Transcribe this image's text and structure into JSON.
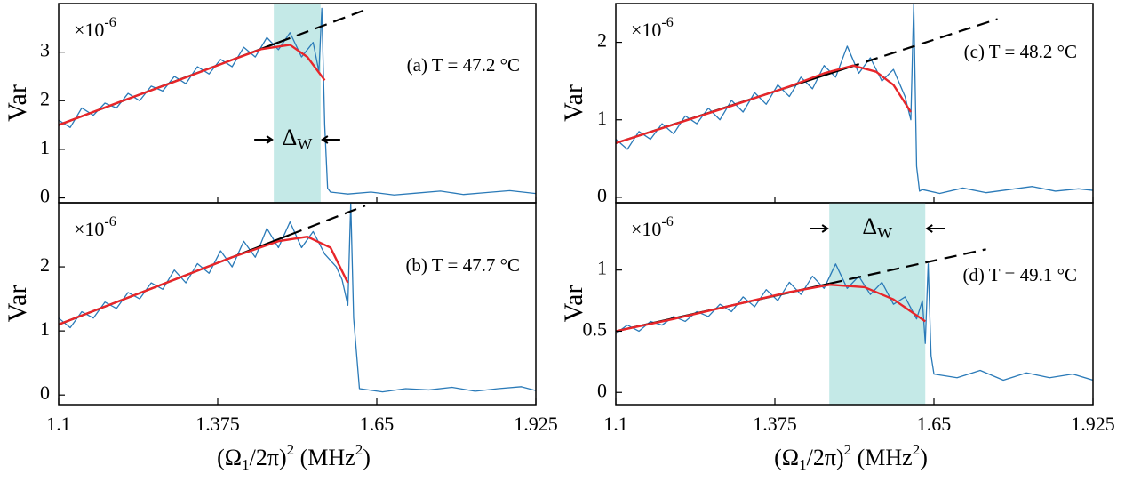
{
  "chart_data": [
    {
      "type": "line",
      "ylabel": "Var",
      "scale_label": "×10",
      "scale_exponent": "-6",
      "panel_label": "(a)  T = 47.2 °C",
      "xlim": [
        1.1,
        1.925
      ],
      "xticks": [
        1.1,
        1.375,
        1.65,
        1.925
      ],
      "show_xtick_labels": false,
      "ylim": [
        -0.1,
        4.0
      ],
      "yticks": [
        0,
        1,
        2,
        3
      ],
      "shade": [
        1.472,
        1.553
      ],
      "shade_color": "#c4e9e7",
      "delta_label": {
        "text": "Δ",
        "sub": "W"
      },
      "series": [
        {
          "color": "#2a7ab8",
          "width": 1.3,
          "dash": false,
          "x": [
            1.1,
            1.12,
            1.14,
            1.16,
            1.18,
            1.2,
            1.22,
            1.24,
            1.26,
            1.28,
            1.3,
            1.32,
            1.34,
            1.36,
            1.38,
            1.4,
            1.42,
            1.44,
            1.46,
            1.48,
            1.5,
            1.52,
            1.54,
            1.55,
            1.555,
            1.56,
            1.565,
            1.57,
            1.6,
            1.64,
            1.68,
            1.72,
            1.76,
            1.8,
            1.84,
            1.88,
            1.925
          ],
          "values": [
            1.6,
            1.45,
            1.85,
            1.7,
            1.95,
            1.85,
            2.15,
            2.0,
            2.3,
            2.2,
            2.5,
            2.35,
            2.7,
            2.55,
            2.85,
            2.7,
            3.1,
            2.9,
            3.3,
            3.05,
            3.4,
            2.9,
            3.2,
            2.6,
            3.9,
            1.5,
            0.2,
            0.12,
            0.08,
            0.12,
            0.06,
            0.1,
            0.14,
            0.07,
            0.11,
            0.15,
            0.09
          ]
        },
        {
          "color": "#000000",
          "width": 2.2,
          "dash": false,
          "x": [
            1.1,
            1.48
          ],
          "values": [
            1.5,
            3.2
          ]
        },
        {
          "color": "#000000",
          "width": 2.2,
          "dash": true,
          "x": [
            1.48,
            1.63
          ],
          "values": [
            3.2,
            3.87
          ]
        },
        {
          "color": "#e8262a",
          "width": 2.4,
          "dash": false,
          "x": [
            1.1,
            1.2,
            1.3,
            1.4,
            1.45,
            1.5,
            1.53,
            1.56
          ],
          "values": [
            1.5,
            1.95,
            2.39,
            2.84,
            3.06,
            3.15,
            2.9,
            2.42
          ]
        }
      ]
    },
    {
      "type": "line",
      "ylabel": "Var",
      "scale_label": "×10",
      "scale_exponent": "-6",
      "panel_label": "(b)  T = 47.7 °C",
      "xlim": [
        1.1,
        1.925
      ],
      "xticks": [
        1.1,
        1.375,
        1.65,
        1.925
      ],
      "show_xtick_labels": true,
      "xlabel": [
        {
          "text": "(Ω",
          "script": "none"
        },
        {
          "text": "1",
          "script": "sub"
        },
        {
          "text": "/2π)",
          "script": "none"
        },
        {
          "text": "2",
          "script": "sup"
        },
        {
          "text": " (MHz",
          "script": "none"
        },
        {
          "text": "2",
          "script": "sup"
        },
        {
          "text": ")",
          "script": "none"
        }
      ],
      "ylim": [
        -0.15,
        3.0
      ],
      "yticks": [
        0,
        1,
        2
      ],
      "series": [
        {
          "color": "#2a7ab8",
          "width": 1.3,
          "dash": false,
          "x": [
            1.1,
            1.12,
            1.14,
            1.16,
            1.18,
            1.2,
            1.22,
            1.24,
            1.26,
            1.28,
            1.3,
            1.32,
            1.34,
            1.36,
            1.38,
            1.4,
            1.42,
            1.44,
            1.46,
            1.48,
            1.5,
            1.52,
            1.54,
            1.56,
            1.58,
            1.59,
            1.6,
            1.605,
            1.61,
            1.62,
            1.66,
            1.7,
            1.74,
            1.78,
            1.82,
            1.86,
            1.9,
            1.925
          ],
          "values": [
            1.2,
            1.05,
            1.3,
            1.2,
            1.45,
            1.35,
            1.6,
            1.5,
            1.75,
            1.65,
            1.95,
            1.75,
            2.05,
            1.9,
            2.25,
            2.0,
            2.4,
            2.15,
            2.6,
            2.3,
            2.7,
            2.3,
            2.55,
            2.2,
            2.0,
            1.8,
            1.4,
            3.0,
            1.2,
            0.1,
            0.05,
            0.1,
            0.08,
            0.12,
            0.06,
            0.1,
            0.13,
            0.07
          ]
        },
        {
          "color": "#000000",
          "width": 2.2,
          "dash": false,
          "x": [
            1.1,
            1.5
          ],
          "values": [
            1.1,
            2.5
          ]
        },
        {
          "color": "#000000",
          "width": 2.2,
          "dash": true,
          "x": [
            1.5,
            1.63
          ],
          "values": [
            2.5,
            2.955
          ]
        },
        {
          "color": "#e8262a",
          "width": 2.4,
          "dash": false,
          "x": [
            1.1,
            1.2,
            1.3,
            1.4,
            1.48,
            1.53,
            1.57,
            1.6
          ],
          "values": [
            1.1,
            1.45,
            1.8,
            2.15,
            2.4,
            2.47,
            2.3,
            1.75
          ]
        }
      ]
    },
    {
      "type": "line",
      "ylabel": "Var",
      "scale_label": "×10",
      "scale_exponent": "-6",
      "panel_label": "(c)  T = 48.2 °C",
      "xlim": [
        1.1,
        1.925
      ],
      "xticks": [
        1.1,
        1.375,
        1.65,
        1.925
      ],
      "show_xtick_labels": false,
      "ylim": [
        -0.07,
        2.5
      ],
      "yticks": [
        0,
        1,
        2
      ],
      "series": [
        {
          "color": "#2a7ab8",
          "width": 1.3,
          "dash": false,
          "x": [
            1.1,
            1.12,
            1.14,
            1.16,
            1.18,
            1.2,
            1.22,
            1.24,
            1.26,
            1.28,
            1.3,
            1.32,
            1.34,
            1.36,
            1.38,
            1.4,
            1.42,
            1.44,
            1.46,
            1.48,
            1.5,
            1.52,
            1.54,
            1.56,
            1.58,
            1.6,
            1.61,
            1.615,
            1.62,
            1.625,
            1.63,
            1.66,
            1.7,
            1.74,
            1.78,
            1.82,
            1.86,
            1.9,
            1.925
          ],
          "values": [
            0.75,
            0.62,
            0.85,
            0.75,
            0.95,
            0.82,
            1.05,
            0.95,
            1.15,
            1.0,
            1.25,
            1.1,
            1.35,
            1.2,
            1.45,
            1.3,
            1.55,
            1.4,
            1.7,
            1.55,
            1.95,
            1.6,
            1.8,
            1.5,
            1.65,
            1.3,
            1.0,
            2.5,
            0.4,
            0.08,
            0.1,
            0.05,
            0.12,
            0.06,
            0.1,
            0.14,
            0.08,
            0.11,
            0.09
          ]
        },
        {
          "color": "#000000",
          "width": 2.2,
          "dash": false,
          "x": [
            1.1,
            1.5
          ],
          "values": [
            0.7,
            1.67
          ]
        },
        {
          "color": "#000000",
          "width": 2.2,
          "dash": true,
          "x": [
            1.5,
            1.76
          ],
          "values": [
            1.67,
            2.3
          ]
        },
        {
          "color": "#e8262a",
          "width": 2.4,
          "dash": false,
          "x": [
            1.1,
            1.2,
            1.3,
            1.4,
            1.46,
            1.51,
            1.55,
            1.58,
            1.61
          ],
          "values": [
            0.7,
            0.94,
            1.18,
            1.43,
            1.6,
            1.7,
            1.62,
            1.45,
            1.1
          ]
        }
      ]
    },
    {
      "type": "line",
      "ylabel": "Var",
      "scale_label": "×10",
      "scale_exponent": "-6",
      "panel_label": "(d)  T = 49.1 °C",
      "xlim": [
        1.1,
        1.925
      ],
      "xticks": [
        1.1,
        1.375,
        1.65,
        1.925
      ],
      "show_xtick_labels": true,
      "xlabel": [
        {
          "text": "(Ω",
          "script": "none"
        },
        {
          "text": "1",
          "script": "sub"
        },
        {
          "text": "/2π)",
          "script": "none"
        },
        {
          "text": "2",
          "script": "sup"
        },
        {
          "text": " (MHz",
          "script": "none"
        },
        {
          "text": "2",
          "script": "sup"
        },
        {
          "text": ")",
          "script": "none"
        }
      ],
      "ylim": [
        -0.1,
        1.55
      ],
      "yticks": [
        0,
        0.5,
        1
      ],
      "shade": [
        1.469,
        1.635
      ],
      "shade_color": "#c4e9e7",
      "delta_label": {
        "text": "Δ",
        "sub": "W"
      },
      "series": [
        {
          "color": "#2a7ab8",
          "width": 1.3,
          "dash": false,
          "x": [
            1.1,
            1.12,
            1.14,
            1.16,
            1.18,
            1.2,
            1.22,
            1.24,
            1.26,
            1.28,
            1.3,
            1.32,
            1.34,
            1.36,
            1.38,
            1.4,
            1.42,
            1.44,
            1.46,
            1.48,
            1.5,
            1.52,
            1.54,
            1.56,
            1.58,
            1.6,
            1.62,
            1.63,
            1.635,
            1.64,
            1.645,
            1.65,
            1.69,
            1.73,
            1.77,
            1.81,
            1.85,
            1.89,
            1.925
          ],
          "values": [
            0.48,
            0.55,
            0.5,
            0.58,
            0.55,
            0.62,
            0.58,
            0.66,
            0.62,
            0.72,
            0.66,
            0.78,
            0.7,
            0.84,
            0.75,
            0.9,
            0.8,
            0.95,
            0.85,
            1.05,
            0.85,
            0.95,
            0.8,
            0.9,
            0.72,
            0.78,
            0.6,
            0.75,
            0.4,
            1.05,
            0.3,
            0.15,
            0.12,
            0.18,
            0.1,
            0.16,
            0.12,
            0.15,
            0.1
          ]
        },
        {
          "color": "#000000",
          "width": 2.2,
          "dash": false,
          "x": [
            1.1,
            1.47
          ],
          "values": [
            0.5,
            0.89
          ]
        },
        {
          "color": "#000000",
          "width": 2.2,
          "dash": true,
          "x": [
            1.47,
            1.74
          ],
          "values": [
            0.89,
            1.17
          ]
        },
        {
          "color": "#e8262a",
          "width": 2.4,
          "dash": false,
          "x": [
            1.1,
            1.2,
            1.3,
            1.4,
            1.47,
            1.53,
            1.58,
            1.635
          ],
          "values": [
            0.5,
            0.6,
            0.71,
            0.82,
            0.88,
            0.86,
            0.76,
            0.58
          ]
        }
      ]
    }
  ]
}
